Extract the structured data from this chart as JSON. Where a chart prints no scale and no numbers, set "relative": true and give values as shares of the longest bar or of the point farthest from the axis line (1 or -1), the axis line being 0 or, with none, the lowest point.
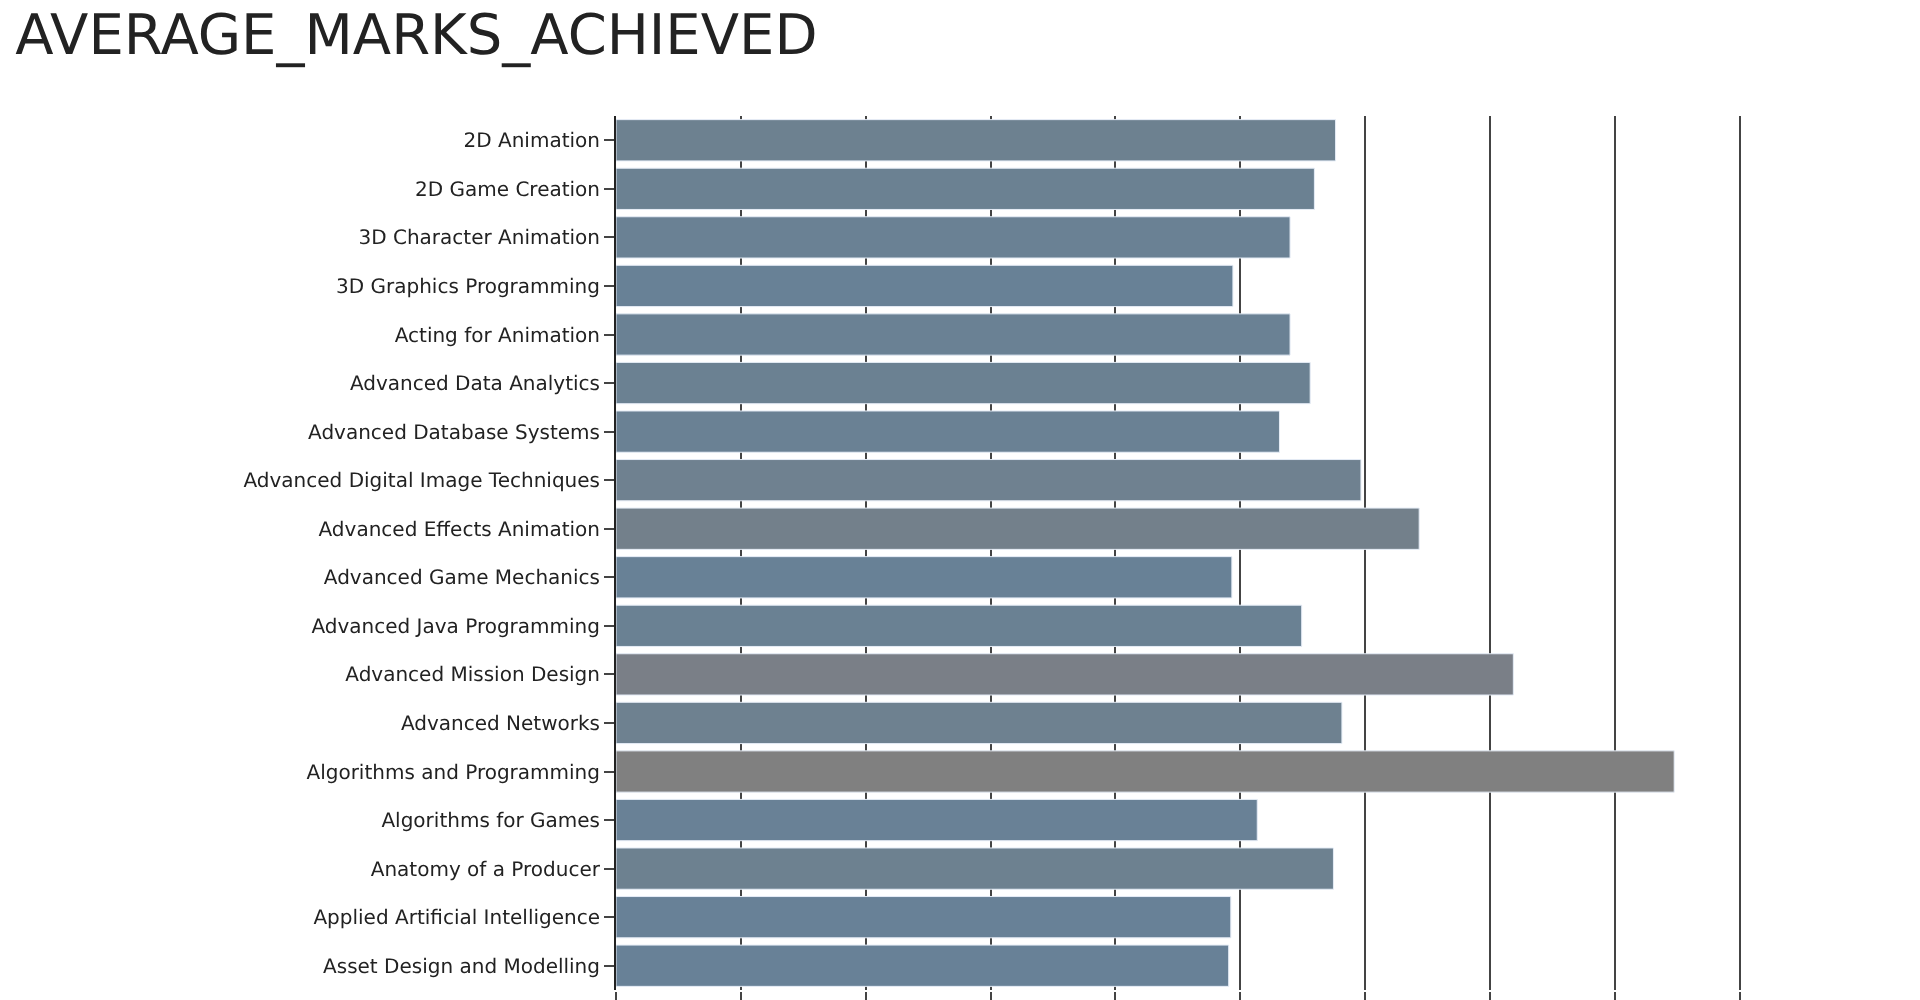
{
  "chart_data": {
    "type": "bar",
    "orientation": "horizontal",
    "relative": true,
    "title": "AVERAGE_MARKS_ACHIEVED",
    "grid": "x",
    "categories": [
      "2D Animation",
      "2D Game Creation",
      "3D Character Animation",
      "3D Graphics Programming",
      "Acting for Animation",
      "Advanced Data Analytics",
      "Advanced Database Systems",
      "Advanced Digital Image Techniques",
      "Advanced Effects Animation",
      "Advanced Game Mechanics",
      "Advanced Java Programming",
      "Advanced Mission Design",
      "Advanced Networks",
      "Algorithms and Programming",
      "Algorithms for Games",
      "Anatomy of a Producer",
      "Applied Artificial Intelligence",
      "Asset Design and Modelling"
    ],
    "values": [
      0.68,
      0.66,
      0.637,
      0.583,
      0.637,
      0.656,
      0.627,
      0.704,
      0.759,
      0.582,
      0.648,
      0.848,
      0.686,
      1,
      0.606,
      0.678,
      0.581,
      0.579
    ],
    "colors": [
      "#6d8190",
      "#6b8192",
      "#6a8194",
      "#688196",
      "#6a8194",
      "#6b8192",
      "#6a8194",
      "#6f8190",
      "#73808b",
      "#688196",
      "#6a8193",
      "#7a7f87",
      "#6e8190",
      "#808080",
      "#698196",
      "#6d8190",
      "#688197",
      "#688197"
    ]
  }
}
